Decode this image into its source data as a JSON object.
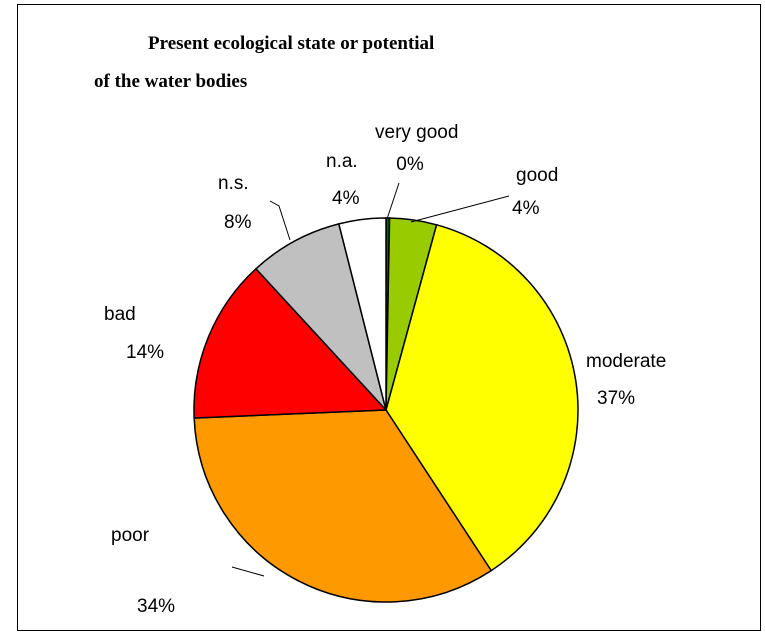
{
  "chart_data": {
    "type": "pie",
    "title_lines": [
      "Present ecological state or potential",
      "of the water bodies"
    ],
    "slices": [
      {
        "label": "very good",
        "pct_label": "0%",
        "value": 0.3,
        "color": "#006600"
      },
      {
        "label": "good",
        "pct_label": "4%",
        "value": 4,
        "color": "#99CC00"
      },
      {
        "label": "moderate",
        "pct_label": "37%",
        "value": 37,
        "color": "#FFFF00"
      },
      {
        "label": "poor",
        "pct_label": "34%",
        "value": 34,
        "color": "#FF9900"
      },
      {
        "label": "bad",
        "pct_label": "14%",
        "value": 14,
        "color": "#FF0000"
      },
      {
        "label": "n.s.",
        "pct_label": "8%",
        "value": 8,
        "color": "#C0C0C0"
      },
      {
        "label": "n.a.",
        "pct_label": "4%",
        "value": 4,
        "color": "#FFFFFF"
      }
    ]
  }
}
